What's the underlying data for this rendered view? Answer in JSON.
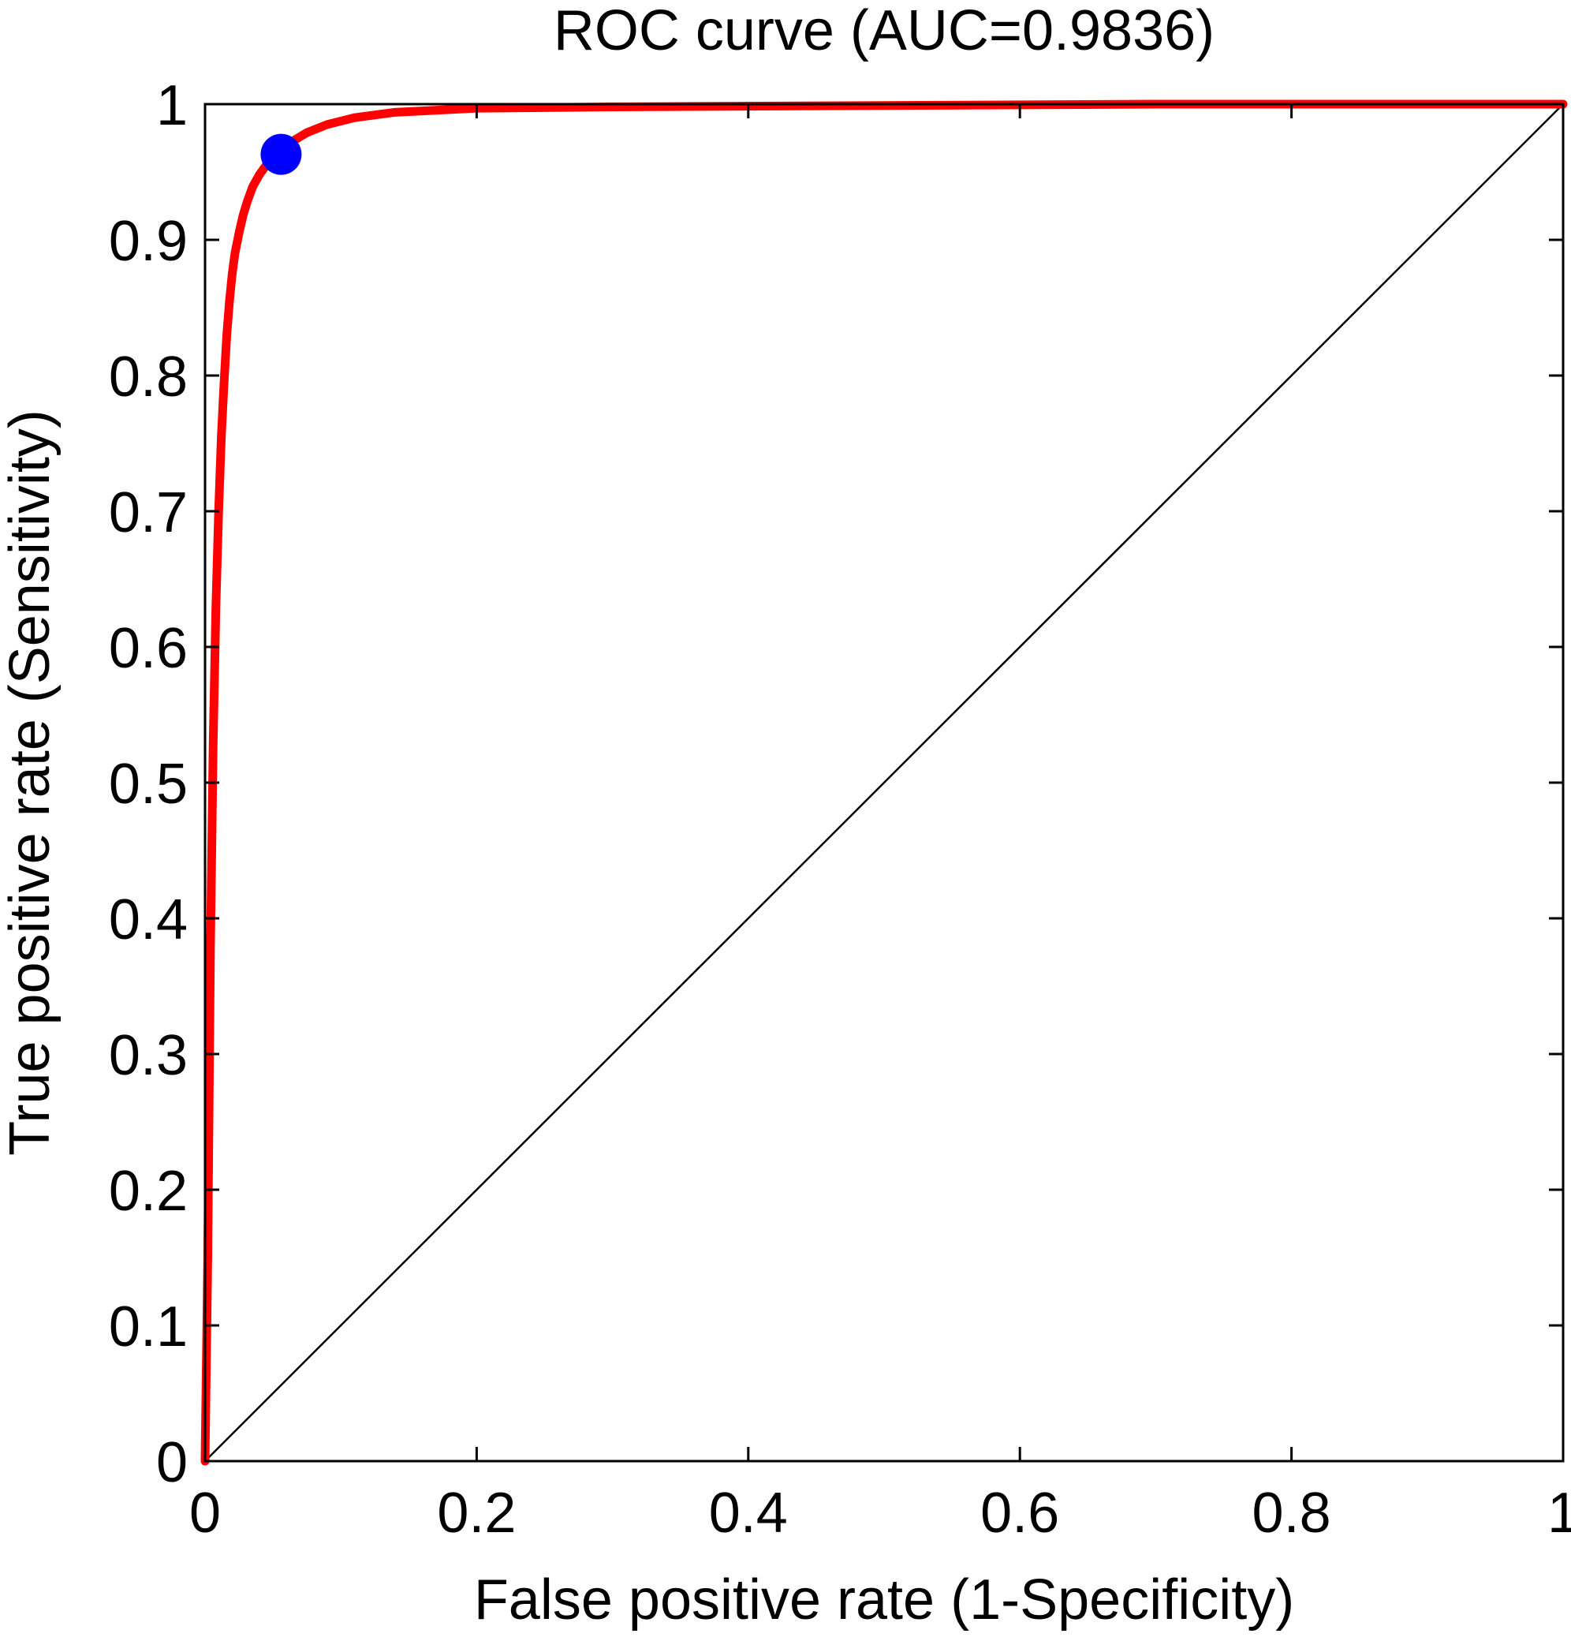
{
  "chart_data": {
    "type": "line",
    "title": "ROC curve (AUC=0.9836)",
    "xlabel": "False positive rate (1-Specificity)",
    "ylabel": "True positive rate (Sensitivity)",
    "xlim": [
      0,
      1
    ],
    "ylim": [
      0,
      1
    ],
    "xticks": [
      "0",
      "0.2",
      "0.4",
      "0.6",
      "0.8",
      "1"
    ],
    "yticks": [
      "0",
      "0.1",
      "0.2",
      "0.3",
      "0.4",
      "0.5",
      "0.6",
      "0.7",
      "0.8",
      "0.9",
      "1"
    ],
    "grid": false,
    "series": [
      {
        "color": "#ff0000",
        "x": [
          0,
          0.002,
          0.004,
          0.006,
          0.008,
          0.01,
          0.012,
          0.014,
          0.016,
          0.018,
          0.02,
          0.022,
          0.025,
          0.028,
          0.031,
          0.035,
          0.04,
          0.045,
          0.05,
          0.056,
          0.065,
          0.075,
          0.09,
          0.11,
          0.14,
          0.2,
          0.3,
          0.5,
          0.7,
          1.0
        ],
        "y": [
          0,
          0.15,
          0.38,
          0.53,
          0.63,
          0.7,
          0.755,
          0.795,
          0.83,
          0.855,
          0.875,
          0.89,
          0.905,
          0.918,
          0.928,
          0.939,
          0.948,
          0.955,
          0.961,
          0.966,
          0.973,
          0.979,
          0.985,
          0.99,
          0.994,
          0.997,
          0.998,
          0.999,
          1.0,
          1.0
        ]
      },
      {
        "color": "#000000",
        "x": [
          0,
          1
        ],
        "y": [
          0,
          1
        ]
      }
    ],
    "marker": {
      "x": 0.056,
      "y": 0.963,
      "color": "#0000ff"
    }
  }
}
